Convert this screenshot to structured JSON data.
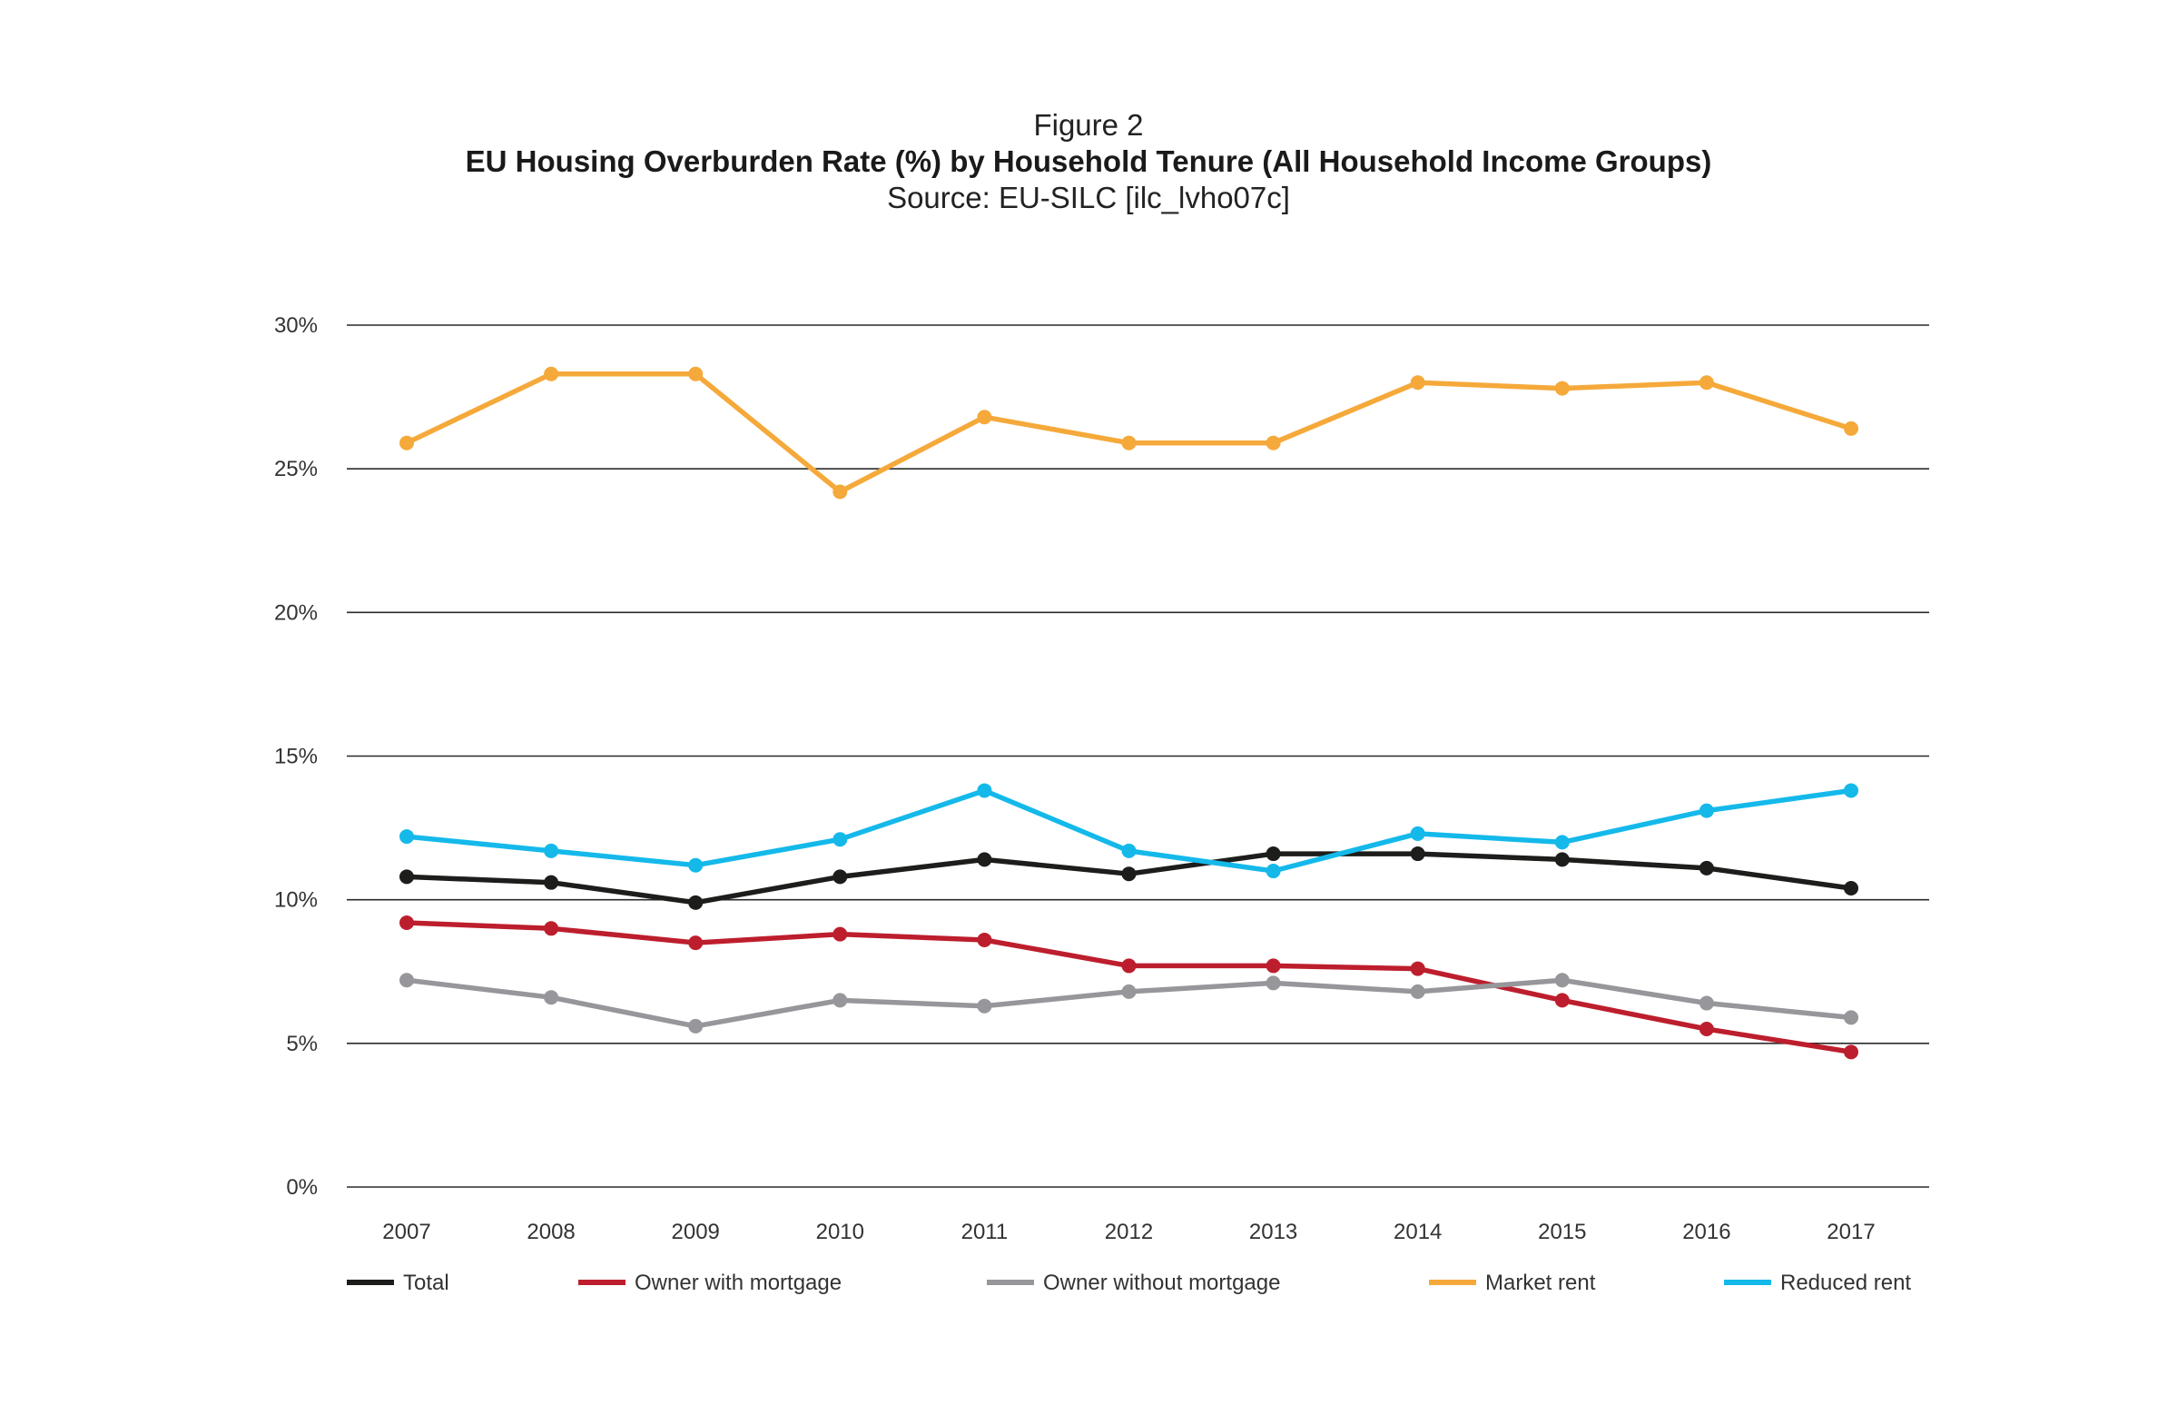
{
  "header": {
    "figure_label": "Figure 2",
    "title": "EU Housing Overburden Rate (%) by Household Tenure (All Household Income Groups)",
    "source": "Source: EU-SILC [ilc_lvho07c]"
  },
  "chart_data": {
    "type": "line",
    "title": "EU Housing Overburden Rate (%) by Household Tenure (All Household Income Groups)",
    "subtitle": "Source: EU-SILC [ilc_lvho07c]",
    "xlabel": "",
    "ylabel": "",
    "x": [
      "2007",
      "2008",
      "2009",
      "2010",
      "2011",
      "2012",
      "2013",
      "2014",
      "2015",
      "2016",
      "2017"
    ],
    "ylim": [
      0,
      30
    ],
    "yticks": [
      0,
      5,
      10,
      15,
      20,
      25,
      30
    ],
    "ytick_labels": [
      "0%",
      "5%",
      "10%",
      "15%",
      "20%",
      "25%",
      "30%"
    ],
    "grid": "horizontal",
    "legend_position": "bottom",
    "series": [
      {
        "name": "Total",
        "color": "#1d1d1b",
        "values": [
          10.8,
          10.6,
          9.9,
          10.8,
          11.4,
          10.9,
          11.6,
          11.6,
          11.4,
          11.1,
          10.4
        ]
      },
      {
        "name": "Owner with mortgage",
        "color": "#bd1e2d",
        "values": [
          9.2,
          9.0,
          8.5,
          8.8,
          8.6,
          7.7,
          7.7,
          7.6,
          6.5,
          5.5,
          4.7
        ]
      },
      {
        "name": "Owner without mortgage",
        "color": "#96969b",
        "values": [
          7.2,
          6.6,
          5.6,
          6.5,
          6.3,
          6.8,
          7.1,
          6.8,
          7.2,
          6.4,
          5.9
        ]
      },
      {
        "name": "Market rent",
        "color": "#f5a93a",
        "values": [
          25.9,
          28.3,
          28.3,
          24.2,
          26.8,
          25.9,
          25.9,
          28.0,
          27.8,
          28.0,
          26.4
        ]
      },
      {
        "name": "Reduced rent",
        "color": "#14b9ea",
        "values": [
          12.2,
          11.7,
          11.2,
          12.1,
          13.8,
          11.7,
          11.0,
          12.3,
          12.0,
          13.1,
          13.8
        ]
      }
    ]
  }
}
